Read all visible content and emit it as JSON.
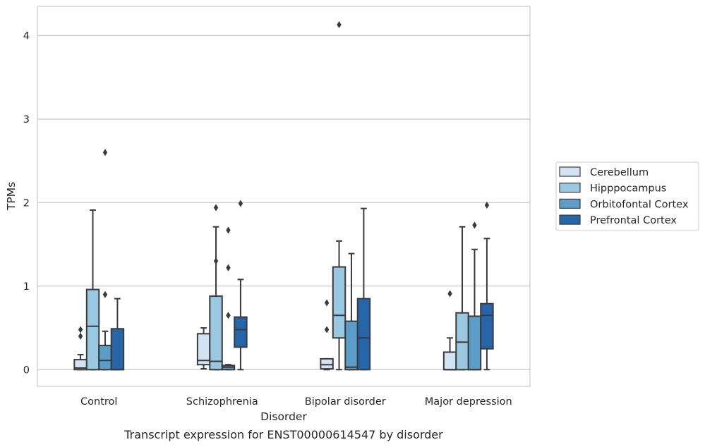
{
  "figure": {
    "caption": "Transcript expression for ENST00000614547 by disorder"
  },
  "chart_data": {
    "type": "box",
    "xlabel": "Disorder",
    "ylabel": "TPMs",
    "ylim": [
      -0.2,
      4.35
    ],
    "yticks": [
      0,
      1,
      2,
      3,
      4
    ],
    "grid": true,
    "legend_position": "right",
    "categories": [
      "Control",
      "Schizophrenia",
      "Bipolar disorder",
      "Major depression"
    ],
    "series": [
      {
        "name": "Cerebellum",
        "color": "#d2e3f3",
        "boxes": [
          {
            "whisker_low": 0,
            "q1": 0,
            "median": 0.02,
            "q3": 0.12,
            "whisker_high": 0.18,
            "outliers": [
              0.4,
              0.48
            ]
          },
          {
            "whisker_low": 0.01,
            "q1": 0.06,
            "median": 0.11,
            "q3": 0.43,
            "whisker_high": 0.5,
            "outliers": []
          },
          {
            "whisker_low": 0,
            "q1": 0.01,
            "median": 0.06,
            "q3": 0.13,
            "whisker_high": 0.13,
            "outliers": [
              0.48,
              0.8
            ]
          },
          {
            "whisker_low": 0,
            "q1": 0,
            "median": 0.0,
            "q3": 0.21,
            "whisker_high": 0.38,
            "outliers": [
              0.91
            ]
          }
        ]
      },
      {
        "name": "Hipppocampus",
        "color": "#9ac8e0",
        "boxes": [
          {
            "whisker_low": 0,
            "q1": 0,
            "median": 0.52,
            "q3": 0.96,
            "whisker_high": 1.91,
            "outliers": []
          },
          {
            "whisker_low": 0,
            "q1": 0,
            "median": 0.1,
            "q3": 0.88,
            "whisker_high": 1.71,
            "outliers": [
              1.3,
              1.94
            ]
          },
          {
            "whisker_low": 0,
            "q1": 0.38,
            "median": 0.65,
            "q3": 1.23,
            "whisker_high": 1.54,
            "outliers": [
              4.13
            ]
          },
          {
            "whisker_low": 0,
            "q1": 0,
            "median": 0.33,
            "q3": 0.68,
            "whisker_high": 1.71,
            "outliers": []
          }
        ]
      },
      {
        "name": "Orbitofontal Cortex",
        "color": "#5b9dc9",
        "boxes": [
          {
            "whisker_low": 0,
            "q1": 0,
            "median": 0.11,
            "q3": 0.29,
            "whisker_high": 0.46,
            "outliers": [
              0.9,
              2.6
            ]
          },
          {
            "whisker_low": 0,
            "q1": 0,
            "median": 0.03,
            "q3": 0.05,
            "whisker_high": 0.06,
            "outliers": [
              0.65,
              1.22,
              1.67
            ]
          },
          {
            "whisker_low": 0,
            "q1": 0,
            "median": 0.03,
            "q3": 0.58,
            "whisker_high": 1.39,
            "outliers": []
          },
          {
            "whisker_low": 0,
            "q1": 0,
            "median": 0.0,
            "q3": 0.64,
            "whisker_high": 1.44,
            "outliers": [
              1.73
            ]
          }
        ]
      },
      {
        "name": "Prefrontal Cortex",
        "color": "#2665a8",
        "boxes": [
          {
            "whisker_low": 0,
            "q1": 0,
            "median": 0.0,
            "q3": 0.49,
            "whisker_high": 0.85,
            "outliers": []
          },
          {
            "whisker_low": 0,
            "q1": 0.27,
            "median": 0.48,
            "q3": 0.63,
            "whisker_high": 1.08,
            "outliers": [
              1.99
            ]
          },
          {
            "whisker_low": 0,
            "q1": 0,
            "median": 0.38,
            "q3": 0.85,
            "whisker_high": 1.93,
            "outliers": []
          },
          {
            "whisker_low": 0,
            "q1": 0.25,
            "median": 0.65,
            "q3": 0.79,
            "whisker_high": 1.57,
            "outliers": [
              1.97
            ]
          }
        ]
      }
    ]
  }
}
